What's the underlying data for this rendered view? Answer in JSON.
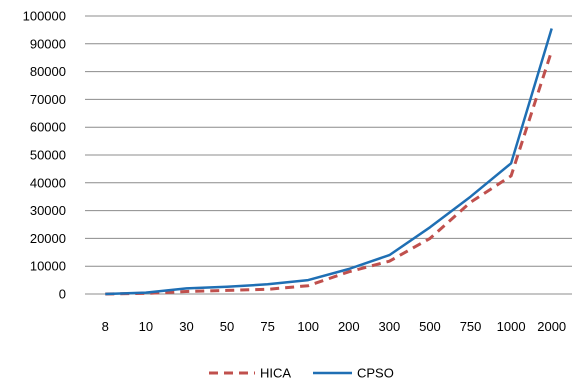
{
  "chart_data": {
    "type": "line",
    "categories": [
      "8",
      "10",
      "30",
      "50",
      "75",
      "100",
      "200",
      "300",
      "500",
      "750",
      "1000",
      "2000"
    ],
    "series": [
      {
        "name": "HICA",
        "color": "#c0504d",
        "dash": true,
        "values": [
          0,
          200,
          900,
          1300,
          1700,
          3000,
          8000,
          11800,
          20000,
          33000,
          42500,
          87500
        ]
      },
      {
        "name": "CPSO",
        "color": "#1f6fb4",
        "dash": false,
        "values": [
          0,
          500,
          2000,
          2600,
          3500,
          5000,
          9000,
          14000,
          24000,
          35000,
          47000,
          95500
        ]
      }
    ],
    "ylim": [
      0,
      100000
    ],
    "yticks": [
      0,
      10000,
      20000,
      30000,
      40000,
      50000,
      60000,
      70000,
      80000,
      90000,
      100000
    ],
    "title": "",
    "xlabel": "",
    "ylabel": "",
    "grid": true,
    "gridColor": "#8c8c8c",
    "legend_position": "bottom"
  }
}
